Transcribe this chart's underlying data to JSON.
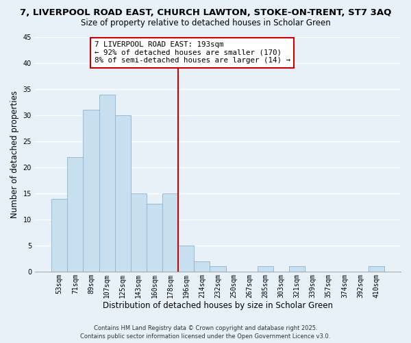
{
  "title": "7, LIVERPOOL ROAD EAST, CHURCH LAWTON, STOKE-ON-TRENT, ST7 3AQ",
  "subtitle": "Size of property relative to detached houses in Scholar Green",
  "xlabel": "Distribution of detached houses by size in Scholar Green",
  "ylabel": "Number of detached properties",
  "bar_labels": [
    "53sqm",
    "71sqm",
    "89sqm",
    "107sqm",
    "125sqm",
    "143sqm",
    "160sqm",
    "178sqm",
    "196sqm",
    "214sqm",
    "232sqm",
    "250sqm",
    "267sqm",
    "285sqm",
    "303sqm",
    "321sqm",
    "339sqm",
    "357sqm",
    "374sqm",
    "392sqm",
    "410sqm"
  ],
  "bar_heights": [
    14,
    22,
    31,
    34,
    30,
    15,
    13,
    15,
    5,
    2,
    1,
    0,
    0,
    1,
    0,
    1,
    0,
    0,
    0,
    0,
    1
  ],
  "bar_color": "#c8dff0",
  "bar_edge_color": "#8ab4d4",
  "background_color": "#e8f0f8",
  "vline_color": "#cc0000",
  "annotation_title": "7 LIVERPOOL ROAD EAST: 193sqm",
  "annotation_line1": "← 92% of detached houses are smaller (170)",
  "annotation_line2": "8% of semi-detached houses are larger (14) →",
  "annotation_box_color": "white",
  "annotation_box_edge": "#cc0000",
  "ylim": [
    0,
    45
  ],
  "yticks": [
    0,
    5,
    10,
    15,
    20,
    25,
    30,
    35,
    40,
    45
  ],
  "footer_line1": "Contains HM Land Registry data © Crown copyright and database right 2025.",
  "footer_line2": "Contains public sector information licensed under the Open Government Licence v3.0.",
  "title_fontsize": 9.5,
  "subtitle_fontsize": 8.5,
  "tick_fontsize": 7,
  "xlabel_fontsize": 8.5,
  "ylabel_fontsize": 8.5,
  "footer_fontsize": 6.0
}
